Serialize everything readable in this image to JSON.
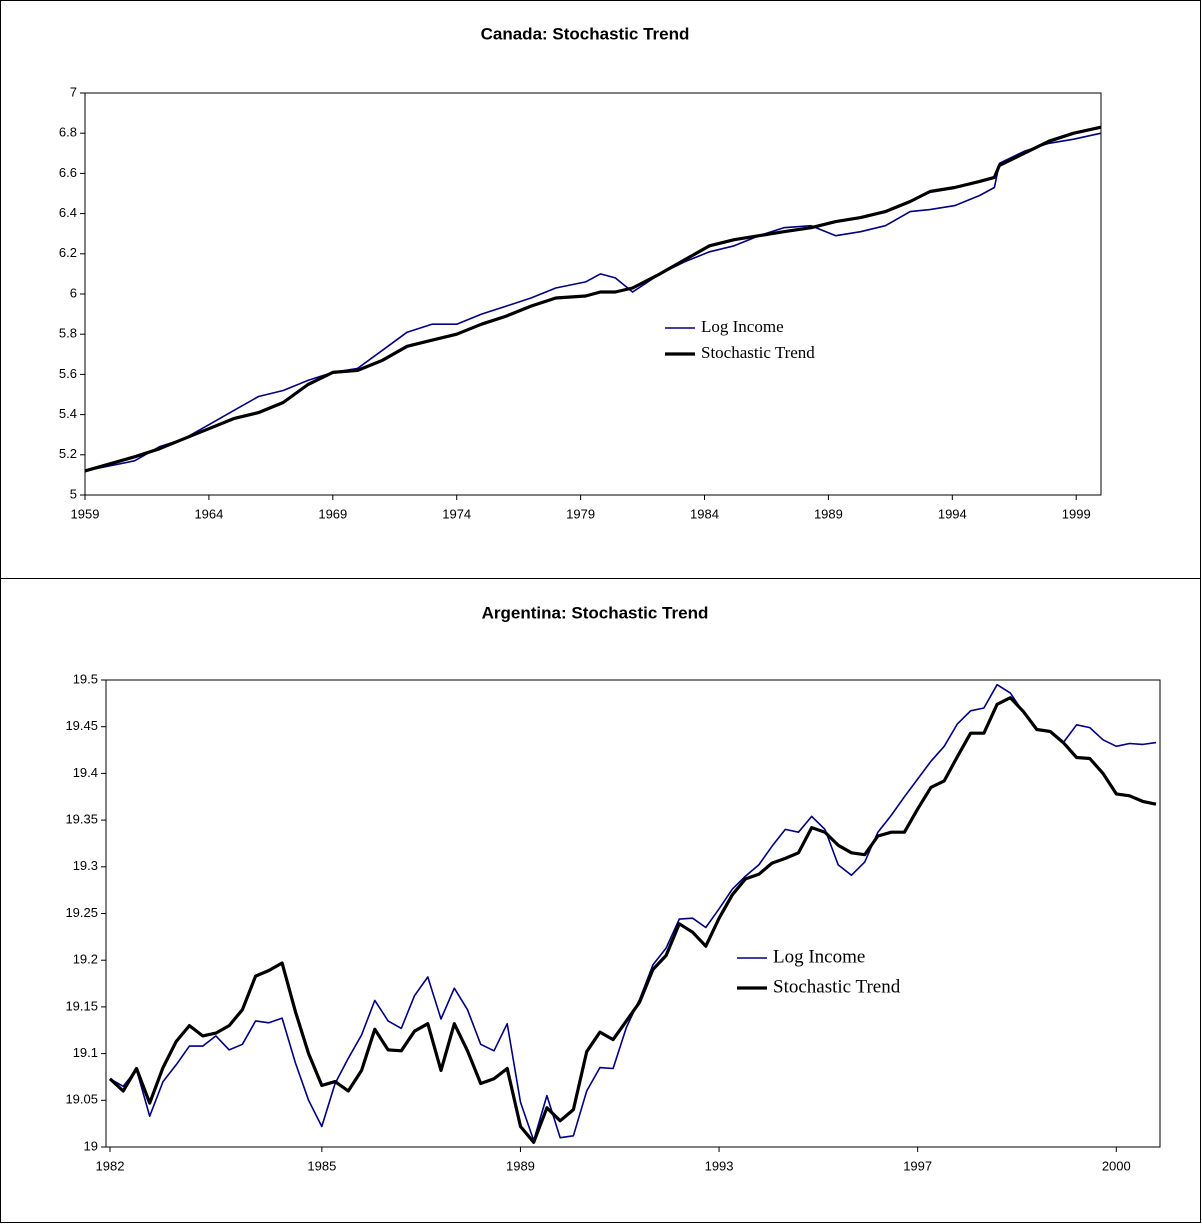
{
  "chart_data": [
    {
      "type": "line",
      "title": "Canada: Stochastic Trend",
      "x": [
        1959,
        1961,
        1962,
        1963,
        1964,
        1965,
        1966,
        1967,
        1968,
        1969,
        1970,
        1971,
        1972,
        1973,
        1974,
        1975,
        1976,
        1977,
        1978,
        1979.2,
        1979.8,
        1980.4,
        1981.1,
        1982.2,
        1983.2,
        1984.2,
        1985.2,
        1986.2,
        1987.2,
        1988.3,
        1989.3,
        1990.3,
        1991.3,
        1992.3,
        1993.1,
        1994.1,
        1995.1,
        1995.7,
        1995.9,
        1996.9,
        1997.9,
        1998.9,
        2000
      ],
      "series": [
        {
          "name": "Log Income",
          "color": "#000080",
          "values": [
            5.12,
            5.17,
            5.24,
            5.28,
            5.35,
            5.42,
            5.49,
            5.52,
            5.57,
            5.61,
            5.63,
            5.72,
            5.81,
            5.85,
            5.85,
            5.9,
            5.94,
            5.98,
            6.03,
            6.06,
            6.1,
            6.08,
            6.01,
            6.1,
            6.16,
            6.21,
            6.24,
            6.29,
            6.33,
            6.34,
            6.29,
            6.31,
            6.34,
            6.41,
            6.42,
            6.44,
            6.49,
            6.53,
            6.65,
            6.71,
            6.75,
            6.77,
            6.8
          ]
        },
        {
          "name": "Stochastic Trend",
          "color": "#000000",
          "values": [
            5.12,
            5.19,
            5.23,
            5.28,
            5.33,
            5.38,
            5.41,
            5.46,
            5.55,
            5.61,
            5.62,
            5.67,
            5.74,
            5.77,
            5.8,
            5.85,
            5.89,
            5.94,
            5.98,
            5.99,
            6.01,
            6.01,
            6.03,
            6.1,
            6.17,
            6.24,
            6.27,
            6.29,
            6.31,
            6.33,
            6.36,
            6.38,
            6.41,
            6.46,
            6.51,
            6.53,
            6.56,
            6.58,
            6.64,
            6.7,
            6.76,
            6.8,
            6.83
          ]
        }
      ],
      "xlim": [
        1959,
        2000
      ],
      "xticks": [
        1959,
        1964,
        1969,
        1974,
        1979,
        1984,
        1989,
        1994,
        1999
      ],
      "ylim": [
        5,
        7
      ],
      "yticks": [
        5,
        5.2,
        5.4,
        5.6,
        5.8,
        6,
        6.2,
        6.4,
        6.6,
        6.8,
        7
      ],
      "grid": false,
      "legend": "center"
    },
    {
      "type": "line",
      "title": "Argentina: Stochastic Trend",
      "categories": [
        "1982",
        null,
        null,
        null,
        null,
        null,
        null,
        null,
        null,
        null,
        null,
        null,
        null,
        null,
        null,
        null,
        "1985",
        null,
        null,
        null,
        null,
        null,
        null,
        null,
        null,
        null,
        null,
        null,
        null,
        null,
        null,
        "1989",
        null,
        null,
        null,
        null,
        null,
        null,
        null,
        null,
        null,
        null,
        null,
        null,
        null,
        null,
        "1993",
        null,
        null,
        null,
        null,
        null,
        null,
        null,
        null,
        null,
        null,
        null,
        null,
        null,
        null,
        "1997",
        null,
        null,
        null,
        null,
        null,
        null,
        null,
        null,
        null,
        null,
        null,
        null,
        null,
        null,
        "2000",
        null,
        null,
        null
      ],
      "series": [
        {
          "name": "Log Income",
          "color": "#000080",
          "values": [
            19.073,
            19.065,
            19.083,
            19.033,
            19.07,
            19.088,
            19.108,
            19.108,
            19.119,
            19.104,
            19.11,
            19.135,
            19.133,
            19.138,
            19.09,
            19.05,
            19.022,
            19.068,
            19.095,
            19.12,
            19.157,
            19.135,
            19.127,
            19.162,
            19.182,
            19.137,
            19.17,
            19.147,
            19.11,
            19.103,
            19.132,
            19.048,
            19.007,
            19.055,
            19.01,
            19.012,
            19.06,
            19.085,
            19.084,
            19.128,
            19.158,
            19.195,
            19.213,
            19.244,
            19.245,
            19.235,
            19.255,
            19.276,
            19.29,
            19.302,
            19.322,
            19.34,
            19.337,
            19.354,
            19.34,
            19.302,
            19.291,
            19.305,
            19.337,
            19.355,
            19.375,
            19.394,
            19.413,
            19.429,
            19.453,
            19.467,
            19.47,
            19.495,
            19.486,
            19.465,
            19.447,
            19.445,
            19.433,
            19.452,
            19.449,
            19.436,
            19.429,
            19.432,
            19.431,
            19.433
          ]
        },
        {
          "name": "Stochastic Trend",
          "color": "#000000",
          "values": [
            19.073,
            19.06,
            19.084,
            19.047,
            19.085,
            19.113,
            19.13,
            19.119,
            19.122,
            19.13,
            19.147,
            19.183,
            19.189,
            19.197,
            19.145,
            19.1,
            19.066,
            19.07,
            19.06,
            19.082,
            19.126,
            19.104,
            19.103,
            19.124,
            19.132,
            19.082,
            19.132,
            19.103,
            19.068,
            19.073,
            19.084,
            19.022,
            19.005,
            19.042,
            19.028,
            19.04,
            19.102,
            19.123,
            19.115,
            19.135,
            19.155,
            19.19,
            19.205,
            19.239,
            19.23,
            19.215,
            19.245,
            19.27,
            19.287,
            19.292,
            19.304,
            19.309,
            19.315,
            19.342,
            19.337,
            19.323,
            19.315,
            19.313,
            19.333,
            19.337,
            19.337,
            19.362,
            19.385,
            19.392,
            19.418,
            19.443,
            19.443,
            19.474,
            19.481,
            19.466,
            19.447,
            19.445,
            19.433,
            19.417,
            19.416,
            19.4,
            19.378,
            19.376,
            19.37,
            19.367
          ]
        }
      ],
      "ylim": [
        19,
        19.5
      ],
      "yticks": [
        19,
        19.05,
        19.1,
        19.15,
        19.2,
        19.25,
        19.3,
        19.35,
        19.4,
        19.45,
        19.5
      ],
      "grid": false,
      "legend": "center"
    }
  ]
}
